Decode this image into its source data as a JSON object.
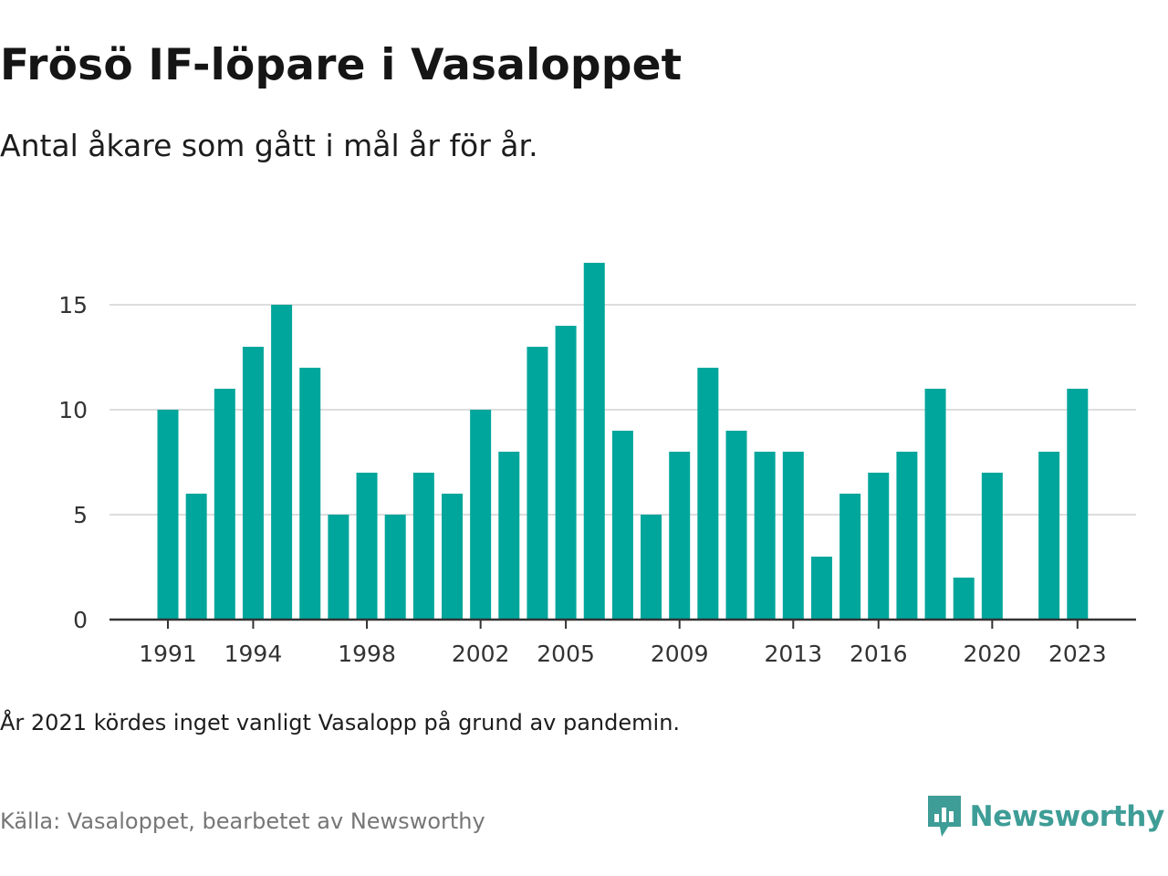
{
  "title": "Frösö IF-löpare i Vasaloppet",
  "subtitle": "Antal åkare som gått i mål år för år.",
  "note": "År 2021 kördes inget vanligt Vasalopp på grund av pandemin.",
  "source": "Källa: Vasaloppet, bearbetet av Newsworthy",
  "brand": {
    "name": "Newsworthy",
    "icon": "newsworthy-logo-icon",
    "color": "#3e9d96"
  },
  "chart_data": {
    "type": "bar",
    "title": "Frösö IF-löpare i Vasaloppet",
    "xlabel": "",
    "ylabel": "",
    "x": [
      1991,
      1992,
      1993,
      1994,
      1995,
      1996,
      1997,
      1998,
      1999,
      2000,
      2001,
      2002,
      2003,
      2004,
      2005,
      2006,
      2007,
      2008,
      2009,
      2010,
      2011,
      2012,
      2013,
      2014,
      2015,
      2016,
      2017,
      2018,
      2019,
      2020,
      2021,
      2022,
      2023
    ],
    "values": [
      10,
      6,
      11,
      13,
      15,
      12,
      5,
      7,
      5,
      7,
      6,
      10,
      8,
      13,
      14,
      17,
      9,
      5,
      8,
      12,
      9,
      8,
      8,
      3,
      6,
      7,
      8,
      11,
      2,
      7,
      null,
      8,
      11
    ],
    "xticks": [
      1991,
      1994,
      1998,
      2002,
      2005,
      2009,
      2013,
      2016,
      2020,
      2023
    ],
    "yticks": [
      0,
      5,
      10,
      15
    ],
    "ylim": [
      0,
      17
    ],
    "grid": true,
    "bar_color": "#00a69c",
    "grid_color": "#dddddd",
    "axis_color": "#333333"
  }
}
